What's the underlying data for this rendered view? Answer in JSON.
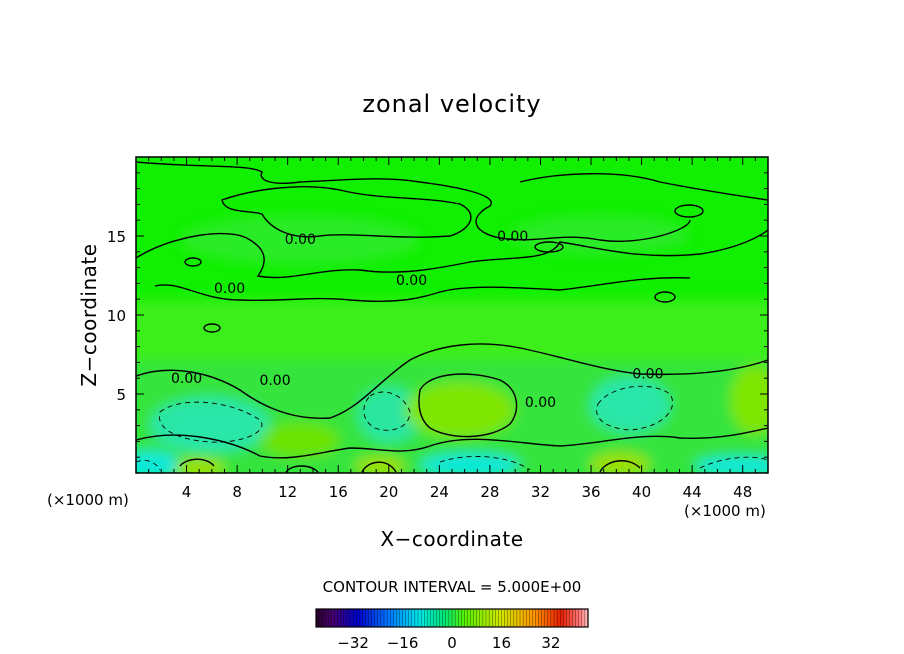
{
  "chart_data": {
    "type": "heatmap",
    "title": "zonal velocity",
    "xlabel": "X−coordinate",
    "ylabel": "Z−coordinate",
    "x_unit_left": "(×1000 m)",
    "x_unit_right": "(×1000 m)",
    "xlim": [
      0,
      50
    ],
    "ylim": [
      0,
      20
    ],
    "x_ticks": [
      4,
      8,
      12,
      16,
      20,
      24,
      28,
      32,
      36,
      40,
      44,
      48
    ],
    "y_ticks": [
      5,
      10,
      15
    ],
    "contour_interval_label": "CONTOUR INTERVAL = 5.000E+00",
    "contour_labels": [
      {
        "text": "0.00",
        "x": 13,
        "y": 14.8
      },
      {
        "text": "0.00",
        "x": 7.4,
        "y": 11.7
      },
      {
        "text": "0.00",
        "x": 21.8,
        "y": 12.2
      },
      {
        "text": "0.00",
        "x": 29.8,
        "y": 15.0
      },
      {
        "text": "0.00",
        "x": 4,
        "y": 6.0
      },
      {
        "text": "0.00",
        "x": 11,
        "y": 5.9
      },
      {
        "text": "0.00",
        "x": 32,
        "y": 4.5
      },
      {
        "text": "0.00",
        "x": 40.5,
        "y": 6.3
      }
    ],
    "colorbar": {
      "min": -44,
      "max": 44,
      "ticks": [
        -32,
        -16,
        0,
        16,
        32
      ],
      "tick_labels": [
        "−32",
        "−16",
        "0",
        "16",
        "32"
      ]
    }
  }
}
